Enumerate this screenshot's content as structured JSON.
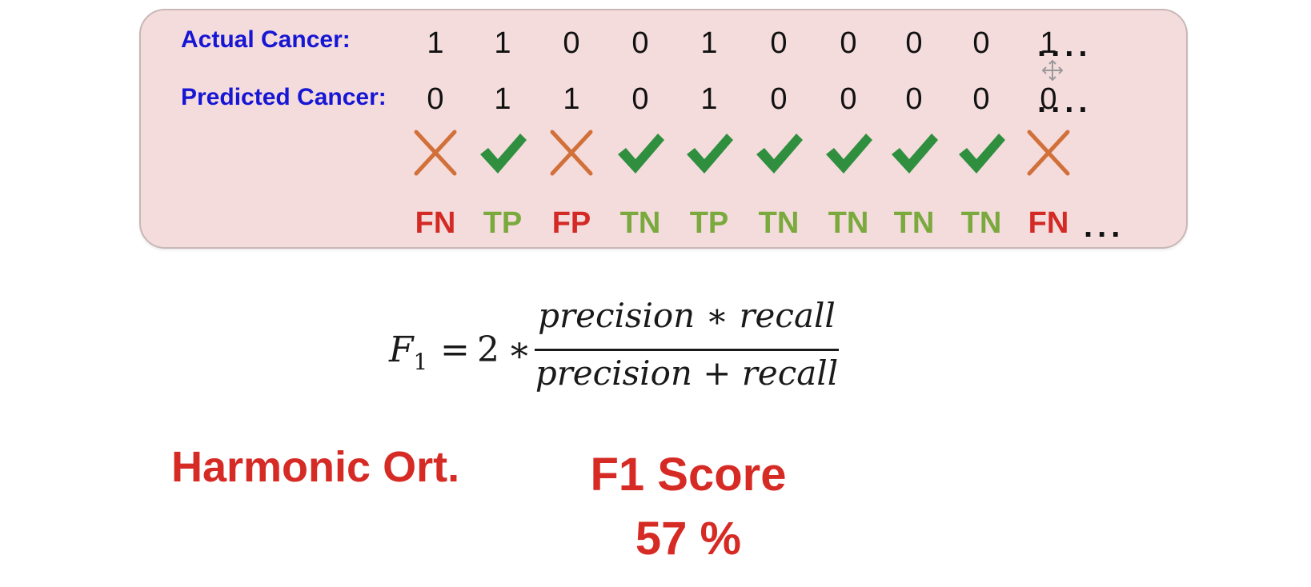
{
  "table": {
    "actual_label": "Actual Cancer:",
    "predicted_label": "Predicted Cancer:",
    "actual": [
      "1",
      "1",
      "0",
      "0",
      "1",
      "0",
      "0",
      "0",
      "0",
      "1"
    ],
    "predicted": [
      "0",
      "1",
      "1",
      "0",
      "1",
      "0",
      "0",
      "0",
      "0",
      "0"
    ],
    "trailing_dots": "....",
    "marks": [
      "cross",
      "check",
      "cross",
      "check",
      "check",
      "check",
      "check",
      "check",
      "check",
      "cross"
    ],
    "codes": [
      "FN",
      "TP",
      "FP",
      "TN",
      "TP",
      "TN",
      "TN",
      "TN",
      "TN",
      "FN"
    ],
    "codes_trailing": "..."
  },
  "formula": {
    "lhs": "F",
    "lhs_sub": "1",
    "equals": "=",
    "factor": "2",
    "times": "∗",
    "numerator": "precision ∗ recall",
    "denominator": "precision + recall"
  },
  "harmonic_label": "Harmonic Ort.",
  "score": {
    "title": "F1 Score",
    "value": "57 %"
  },
  "colors": {
    "label_blue": "#1616d4",
    "bad_red": "#d42a25",
    "good_green": "#7aa93e",
    "check_green": "#2f8f3f",
    "cross_orange": "#d2703a",
    "panel_bg": "#f4dcdc"
  }
}
